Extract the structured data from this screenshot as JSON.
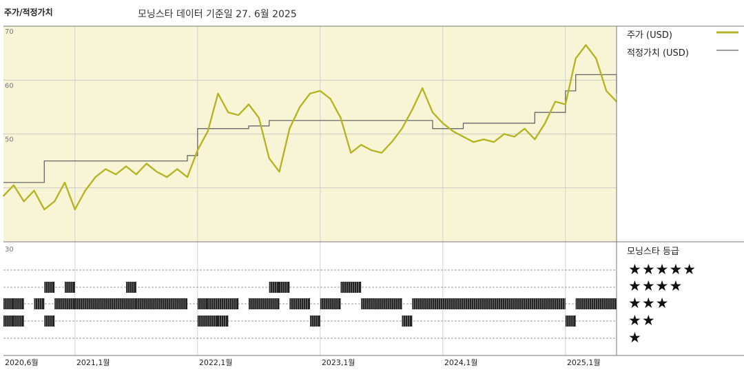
{
  "header": {
    "title": "주가/적정가치",
    "subtitle": "모닝스타 데이터 기준일 27. 6월 2025"
  },
  "legend": {
    "price_label": "주가 (USD)",
    "fair_value_label": "적정가치 (USD)"
  },
  "rating_panel": {
    "title": "모닝스타 등급",
    "rows": [
      "★★★★★",
      "★★★★",
      "★★★",
      "★★",
      "★"
    ]
  },
  "colors": {
    "price_line": "#b4b424",
    "fair_value_line": "#666666",
    "plot_background": "#f8f5d6",
    "rating_bar": "#222222"
  },
  "chart_data": [
    {
      "type": "line",
      "x_range": [
        "2020-06",
        "2025-06"
      ],
      "ylim": [
        30,
        70
      ],
      "yticks": [
        30,
        40,
        50,
        60,
        70
      ],
      "ytick_labels": [
        "30",
        "",
        "50",
        "60",
        "70"
      ],
      "xtick_labels": [
        "2020,6월",
        "2021,1월",
        "2022,1월",
        "2023,1월",
        "2024,1월",
        "2025,1월"
      ],
      "xtick_dates": [
        "2020-06",
        "2021-01",
        "2022-01",
        "2023-01",
        "2024-01",
        "2025-01"
      ],
      "grid": true,
      "series": [
        {
          "name": "주가 (USD)",
          "points": [
            [
              "2020-06",
              38.5
            ],
            [
              "2020-07",
              40.5
            ],
            [
              "2020-08",
              37.5
            ],
            [
              "2020-09",
              39.5
            ],
            [
              "2020-10",
              36.0
            ],
            [
              "2020-11",
              37.5
            ],
            [
              "2020-12",
              41.0
            ],
            [
              "2021-01",
              36.0
            ],
            [
              "2021-02",
              39.5
            ],
            [
              "2021-03",
              42.0
            ],
            [
              "2021-04",
              43.5
            ],
            [
              "2021-05",
              42.5
            ],
            [
              "2021-06",
              44.0
            ],
            [
              "2021-07",
              42.5
            ],
            [
              "2021-08",
              44.5
            ],
            [
              "2021-09",
              43.0
            ],
            [
              "2021-10",
              42.0
            ],
            [
              "2021-11",
              43.5
            ],
            [
              "2021-12",
              42.0
            ],
            [
              "2022-01",
              47.0
            ],
            [
              "2022-02",
              50.5
            ],
            [
              "2022-03",
              57.5
            ],
            [
              "2022-04",
              54.0
            ],
            [
              "2022-05",
              53.5
            ],
            [
              "2022-06",
              55.5
            ],
            [
              "2022-07",
              53.0
            ],
            [
              "2022-08",
              45.5
            ],
            [
              "2022-09",
              43.0
            ],
            [
              "2022-10",
              51.0
            ],
            [
              "2022-11",
              55.0
            ],
            [
              "2022-12",
              57.5
            ],
            [
              "2023-01",
              58.0
            ],
            [
              "2023-02",
              56.5
            ],
            [
              "2023-03",
              53.0
            ],
            [
              "2023-04",
              46.5
            ],
            [
              "2023-05",
              48.0
            ],
            [
              "2023-06",
              47.0
            ],
            [
              "2023-07",
              46.5
            ],
            [
              "2023-08",
              48.5
            ],
            [
              "2023-09",
              51.0
            ],
            [
              "2023-10",
              54.5
            ],
            [
              "2023-11",
              58.5
            ],
            [
              "2023-12",
              54.0
            ],
            [
              "2024-01",
              52.0
            ],
            [
              "2024-02",
              50.5
            ],
            [
              "2024-03",
              49.5
            ],
            [
              "2024-04",
              48.5
            ],
            [
              "2024-05",
              49.0
            ],
            [
              "2024-06",
              48.5
            ],
            [
              "2024-07",
              50.0
            ],
            [
              "2024-08",
              49.5
            ],
            [
              "2024-09",
              51.0
            ],
            [
              "2024-10",
              49.0
            ],
            [
              "2024-11",
              52.0
            ],
            [
              "2024-12",
              56.0
            ],
            [
              "2025-01",
              55.5
            ],
            [
              "2025-02",
              64.0
            ],
            [
              "2025-03",
              66.5
            ],
            [
              "2025-04",
              64.0
            ],
            [
              "2025-05",
              58.0
            ],
            [
              "2025-06",
              56.0
            ]
          ]
        },
        {
          "name": "적정가치 (USD)",
          "points": [
            [
              "2020-06",
              41
            ],
            [
              "2020-10",
              41
            ],
            [
              "2020-10",
              45
            ],
            [
              "2021-12",
              45
            ],
            [
              "2021-12",
              46
            ],
            [
              "2022-01",
              46
            ],
            [
              "2022-01",
              51
            ],
            [
              "2022-06",
              51
            ],
            [
              "2022-06",
              51.5
            ],
            [
              "2022-08",
              51.5
            ],
            [
              "2022-08",
              52.5
            ],
            [
              "2023-12",
              52.5
            ],
            [
              "2023-12",
              51
            ],
            [
              "2024-03",
              51
            ],
            [
              "2024-03",
              52
            ],
            [
              "2024-10",
              52
            ],
            [
              "2024-10",
              54
            ],
            [
              "2025-01",
              54
            ],
            [
              "2025-01",
              58
            ],
            [
              "2025-02",
              58
            ],
            [
              "2025-02",
              61
            ],
            [
              "2025-06",
              61
            ],
            [
              "2025-06",
              57.5
            ]
          ]
        }
      ]
    },
    {
      "type": "timeline",
      "levels": [
        5,
        4,
        3,
        2,
        1
      ],
      "rating_segments": {
        "4": [
          [
            "2020-10",
            "2020-11"
          ],
          [
            "2020-12",
            "2021-01"
          ],
          [
            "2021-06",
            "2021-07"
          ],
          [
            "2022-08",
            "2022-09"
          ],
          [
            "2022-09",
            "2022-10"
          ],
          [
            "2023-03",
            "2023-05"
          ]
        ],
        "3": [
          [
            "2020-06",
            "2020-07"
          ],
          [
            "2020-07",
            "2020-08"
          ],
          [
            "2020-09",
            "2020-10"
          ],
          [
            "2020-11",
            "2021-01"
          ],
          [
            "2021-01",
            "2021-07"
          ],
          [
            "2021-07",
            "2021-12"
          ],
          [
            "2022-01",
            "2022-02"
          ],
          [
            "2022-02",
            "2022-05"
          ],
          [
            "2022-06",
            "2022-09"
          ],
          [
            "2022-10",
            "2022-12"
          ],
          [
            "2023-01",
            "2023-03"
          ],
          [
            "2023-05",
            "2023-09"
          ],
          [
            "2023-10",
            "2025-01"
          ],
          [
            "2025-02",
            "2025-06"
          ]
        ],
        "2": [
          [
            "2020-06",
            "2020-07"
          ],
          [
            "2020-07",
            "2020-08"
          ],
          [
            "2020-10",
            "2020-11"
          ],
          [
            "2022-01",
            "2022-03"
          ],
          [
            "2022-03",
            "2022-04"
          ],
          [
            "2022-12",
            "2023-01"
          ],
          [
            "2023-09",
            "2023-10"
          ],
          [
            "2025-01",
            "2025-02"
          ]
        ]
      }
    }
  ]
}
